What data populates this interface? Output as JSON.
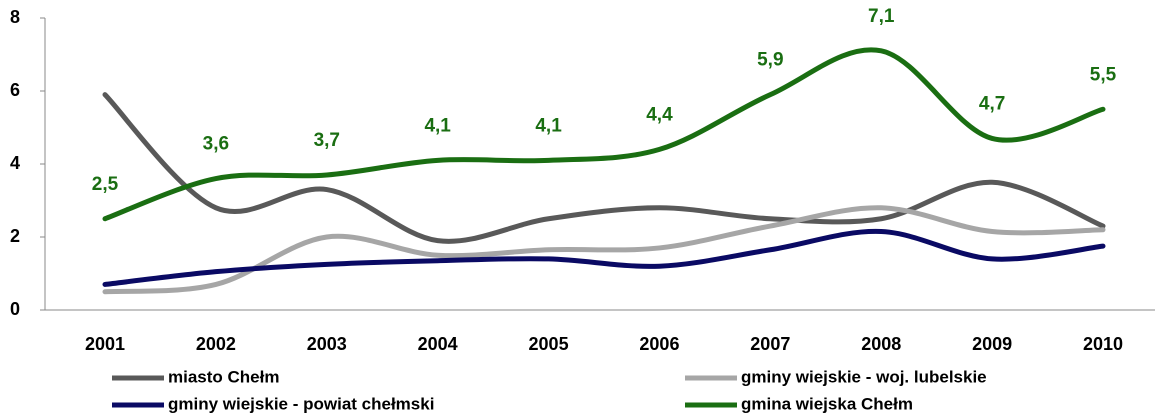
{
  "chart_data": {
    "type": "line",
    "categories": [
      "2001",
      "2002",
      "2003",
      "2004",
      "2005",
      "2006",
      "2007",
      "2008",
      "2009",
      "2010"
    ],
    "ylim": [
      0,
      8
    ],
    "yticks": [
      0,
      2,
      4,
      6,
      8
    ],
    "series": [
      {
        "name": "miasto Chełm",
        "color": "#595959",
        "values": [
          5.9,
          2.8,
          3.3,
          1.9,
          2.5,
          2.8,
          2.5,
          2.5,
          3.5,
          2.3
        ]
      },
      {
        "name": "gminy wiejskie - woj. lubelskie",
        "color": "#a6a6a6",
        "values": [
          0.5,
          0.7,
          2.0,
          1.5,
          1.65,
          1.7,
          2.3,
          2.8,
          2.15,
          2.2
        ]
      },
      {
        "name": "gminy wiejskie - powiat chełmski",
        "color": "#0a0a64",
        "values": [
          0.7,
          1.05,
          1.25,
          1.35,
          1.4,
          1.2,
          1.65,
          2.15,
          1.4,
          1.75
        ]
      },
      {
        "name": "gmina wiejska Chełm",
        "color": "#1a6e12",
        "values": [
          2.5,
          3.6,
          3.7,
          4.1,
          4.1,
          4.4,
          5.9,
          7.1,
          4.7,
          5.5
        ],
        "value_labels": [
          "2,5",
          "3,6",
          "3,7",
          "4,1",
          "4,1",
          "4,4",
          "5,9",
          "7,1",
          "4,7",
          "5,5"
        ]
      }
    ]
  }
}
